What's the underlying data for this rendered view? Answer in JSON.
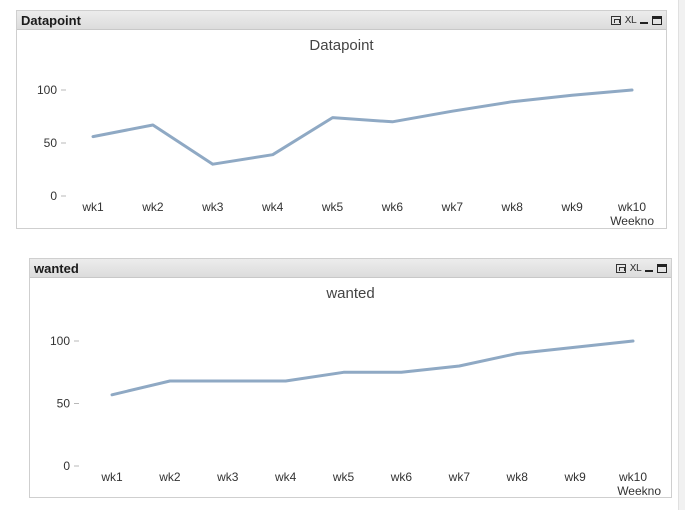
{
  "panels": [
    {
      "caption": "Datapoint",
      "icons": [
        "print-icon",
        "excel-icon",
        "minimize-icon",
        "maximize-icon"
      ],
      "xl_label": "XL"
    },
    {
      "caption": "wanted",
      "icons": [
        "print-icon",
        "excel-icon",
        "minimize-icon",
        "maximize-icon"
      ],
      "xl_label": "XL"
    }
  ],
  "chart_data": [
    {
      "type": "line",
      "title": "Datapoint",
      "xlabel": "Weekno",
      "ylabel": "",
      "categories": [
        "wk1",
        "wk2",
        "wk3",
        "wk4",
        "wk5",
        "wk6",
        "wk7",
        "wk8",
        "wk9",
        "wk10"
      ],
      "values": [
        56,
        67,
        30,
        39,
        74,
        70,
        80,
        89,
        95,
        100
      ],
      "yticks": [
        0,
        50,
        100
      ],
      "ylim": [
        0,
        120
      ],
      "grid": false,
      "color": "#8fa9c4"
    },
    {
      "type": "line",
      "title": "wanted",
      "xlabel": "Weekno",
      "ylabel": "",
      "categories": [
        "wk1",
        "wk2",
        "wk3",
        "wk4",
        "wk5",
        "wk6",
        "wk7",
        "wk8",
        "wk9",
        "wk10"
      ],
      "values": [
        57,
        68,
        68,
        68,
        75,
        75,
        80,
        90,
        95,
        100
      ],
      "yticks": [
        0,
        50,
        100
      ],
      "ylim": [
        0,
        120
      ],
      "grid": false,
      "color": "#8fa9c4"
    }
  ]
}
